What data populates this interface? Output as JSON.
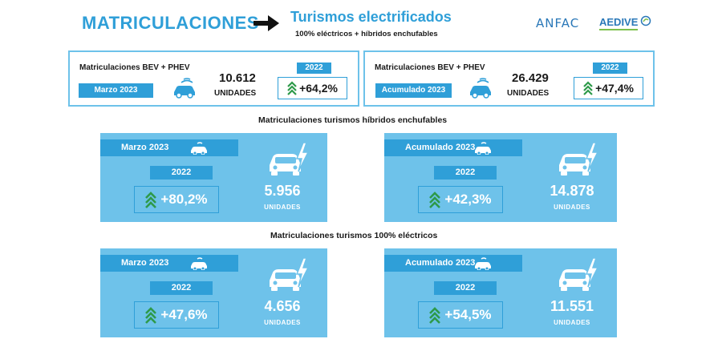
{
  "header": {
    "title": "MATRICULACIONES",
    "subtitle": "Turismos electrificados",
    "subtitle_note": "100% eléctricos + híbridos enchufables",
    "logo_anfac": "ANFAC",
    "logo_aedive": "AEDIVE"
  },
  "summary": [
    {
      "label": "Matriculaciones BEV + PHEV",
      "period": "Marzo 2023",
      "number": "10.612",
      "unit": "UNIDADES",
      "year": "2022",
      "pct": "+64,2%"
    },
    {
      "label": "Matriculaciones BEV + PHEV",
      "period": "Acumulado 2023",
      "number": "26.429",
      "unit": "UNIDADES",
      "year": "2022",
      "pct": "+47,4%"
    }
  ],
  "sections": [
    {
      "title": "Matriculaciones turismos híbridos enchufables",
      "panels": [
        {
          "period": "Marzo 2023",
          "year": "2022",
          "pct": "+80,2%",
          "number": "5.956",
          "unit": "UNIDADES"
        },
        {
          "period": "Acumulado 2023",
          "year": "2022",
          "pct": "+42,3%",
          "number": "14.878",
          "unit": "UNIDADES"
        }
      ]
    },
    {
      "title": "Matriculaciones turismos 100% eléctricos",
      "panels": [
        {
          "period": "Marzo 2023",
          "year": "2022",
          "pct": "+47,6%",
          "number": "4.656",
          "unit": "UNIDADES"
        },
        {
          "period": "Acumulado 2023",
          "year": "2022",
          "pct": "+54,5%",
          "number": "11.551",
          "unit": "UNIDADES"
        }
      ]
    }
  ],
  "colors": {
    "accent": "#2f9fd8",
    "panel": "#6ec2ea",
    "up_arrow": "#2e9a4a"
  }
}
